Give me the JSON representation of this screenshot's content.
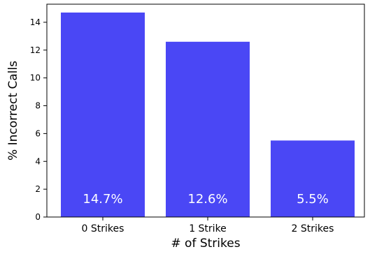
{
  "chart_data": {
    "type": "bar",
    "title": "",
    "xlabel": "# of Strikes",
    "ylabel": "% Incorrect Calls",
    "categories": [
      "0 Strikes",
      "1 Strike",
      "2 Strikes"
    ],
    "values": [
      14.7,
      12.6,
      5.5
    ],
    "data_labels": [
      "14.7%",
      "12.6%",
      "5.5%"
    ],
    "ylim": [
      0,
      15.3
    ],
    "yticks": [
      0,
      2,
      4,
      6,
      8,
      10,
      12,
      14
    ],
    "bar_color": "#4a47f5",
    "data_label_color": "#ffffff",
    "grid": false,
    "legend": "none"
  }
}
